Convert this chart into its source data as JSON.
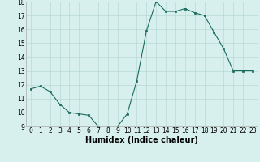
{
  "x": [
    0,
    1,
    2,
    3,
    4,
    5,
    6,
    7,
    8,
    9,
    10,
    11,
    12,
    13,
    14,
    15,
    16,
    17,
    18,
    19,
    20,
    21,
    22,
    23
  ],
  "y": [
    11.7,
    11.9,
    11.5,
    10.6,
    10.0,
    9.9,
    9.8,
    9.0,
    9.0,
    9.0,
    9.9,
    12.3,
    15.9,
    18.0,
    17.3,
    17.3,
    17.5,
    17.2,
    17.0,
    15.8,
    14.6,
    13.0,
    13.0,
    13.0
  ],
  "xlabel": "Humidex (Indice chaleur)",
  "ylim": [
    9,
    18
  ],
  "yticks": [
    9,
    10,
    11,
    12,
    13,
    14,
    15,
    16,
    17,
    18
  ],
  "xticks": [
    0,
    1,
    2,
    3,
    4,
    5,
    6,
    7,
    8,
    9,
    10,
    11,
    12,
    13,
    14,
    15,
    16,
    17,
    18,
    19,
    20,
    21,
    22,
    23
  ],
  "line_color": "#1a6b5e",
  "marker": "s",
  "marker_size": 2.0,
  "bg_color": "#d8f0ed",
  "grid_color": "#b8d8d4",
  "tick_fontsize": 5.5,
  "xlabel_fontsize": 7.0
}
